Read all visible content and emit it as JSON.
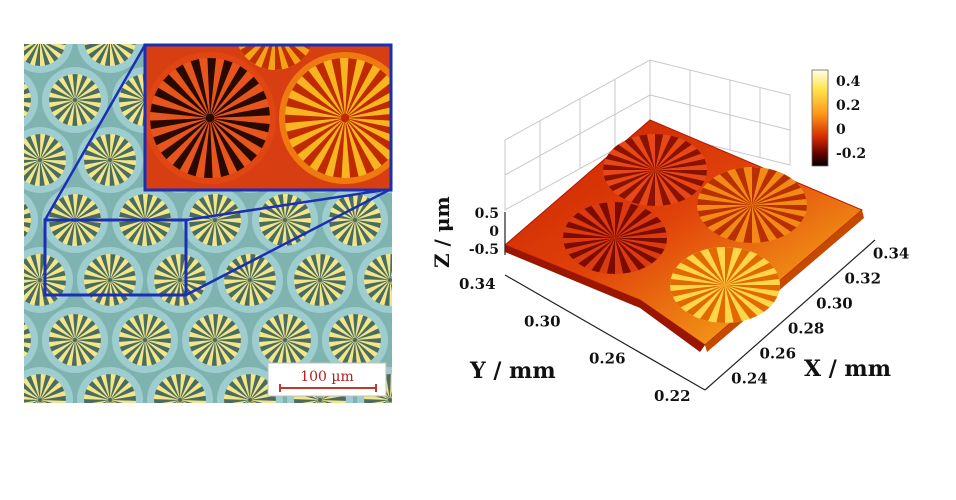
{
  "left_panel": {
    "scale_bar_label": "100 µm",
    "colors": {
      "background": "#7fb3b0",
      "ring": "#9ecdd0",
      "spoke_light": "#f0e68a",
      "spoke_dark": "#4c6b60",
      "inset_frame": "#1a2fb5",
      "scale_bar": "#c0392b"
    }
  },
  "right_panel": {
    "axes": {
      "x_label": "X / mm",
      "y_label": "Y / mm",
      "z_label": "Z / μm",
      "x_ticks": [
        "0.24",
        "0.26",
        "0.28",
        "0.30",
        "0.32",
        "0.34"
      ],
      "y_ticks": [
        "0.22",
        "0.26",
        "0.30",
        "0.34"
      ],
      "z_ticks": [
        "0.5",
        "0",
        "-0.5"
      ]
    },
    "colorbar": {
      "ticks": [
        "0.4",
        "0.2",
        "0",
        "-0.2"
      ],
      "colors": [
        "#ffffe0",
        "#ffd700",
        "#ff8c00",
        "#d62a00",
        "#5a0000",
        "#000000"
      ]
    }
  }
}
